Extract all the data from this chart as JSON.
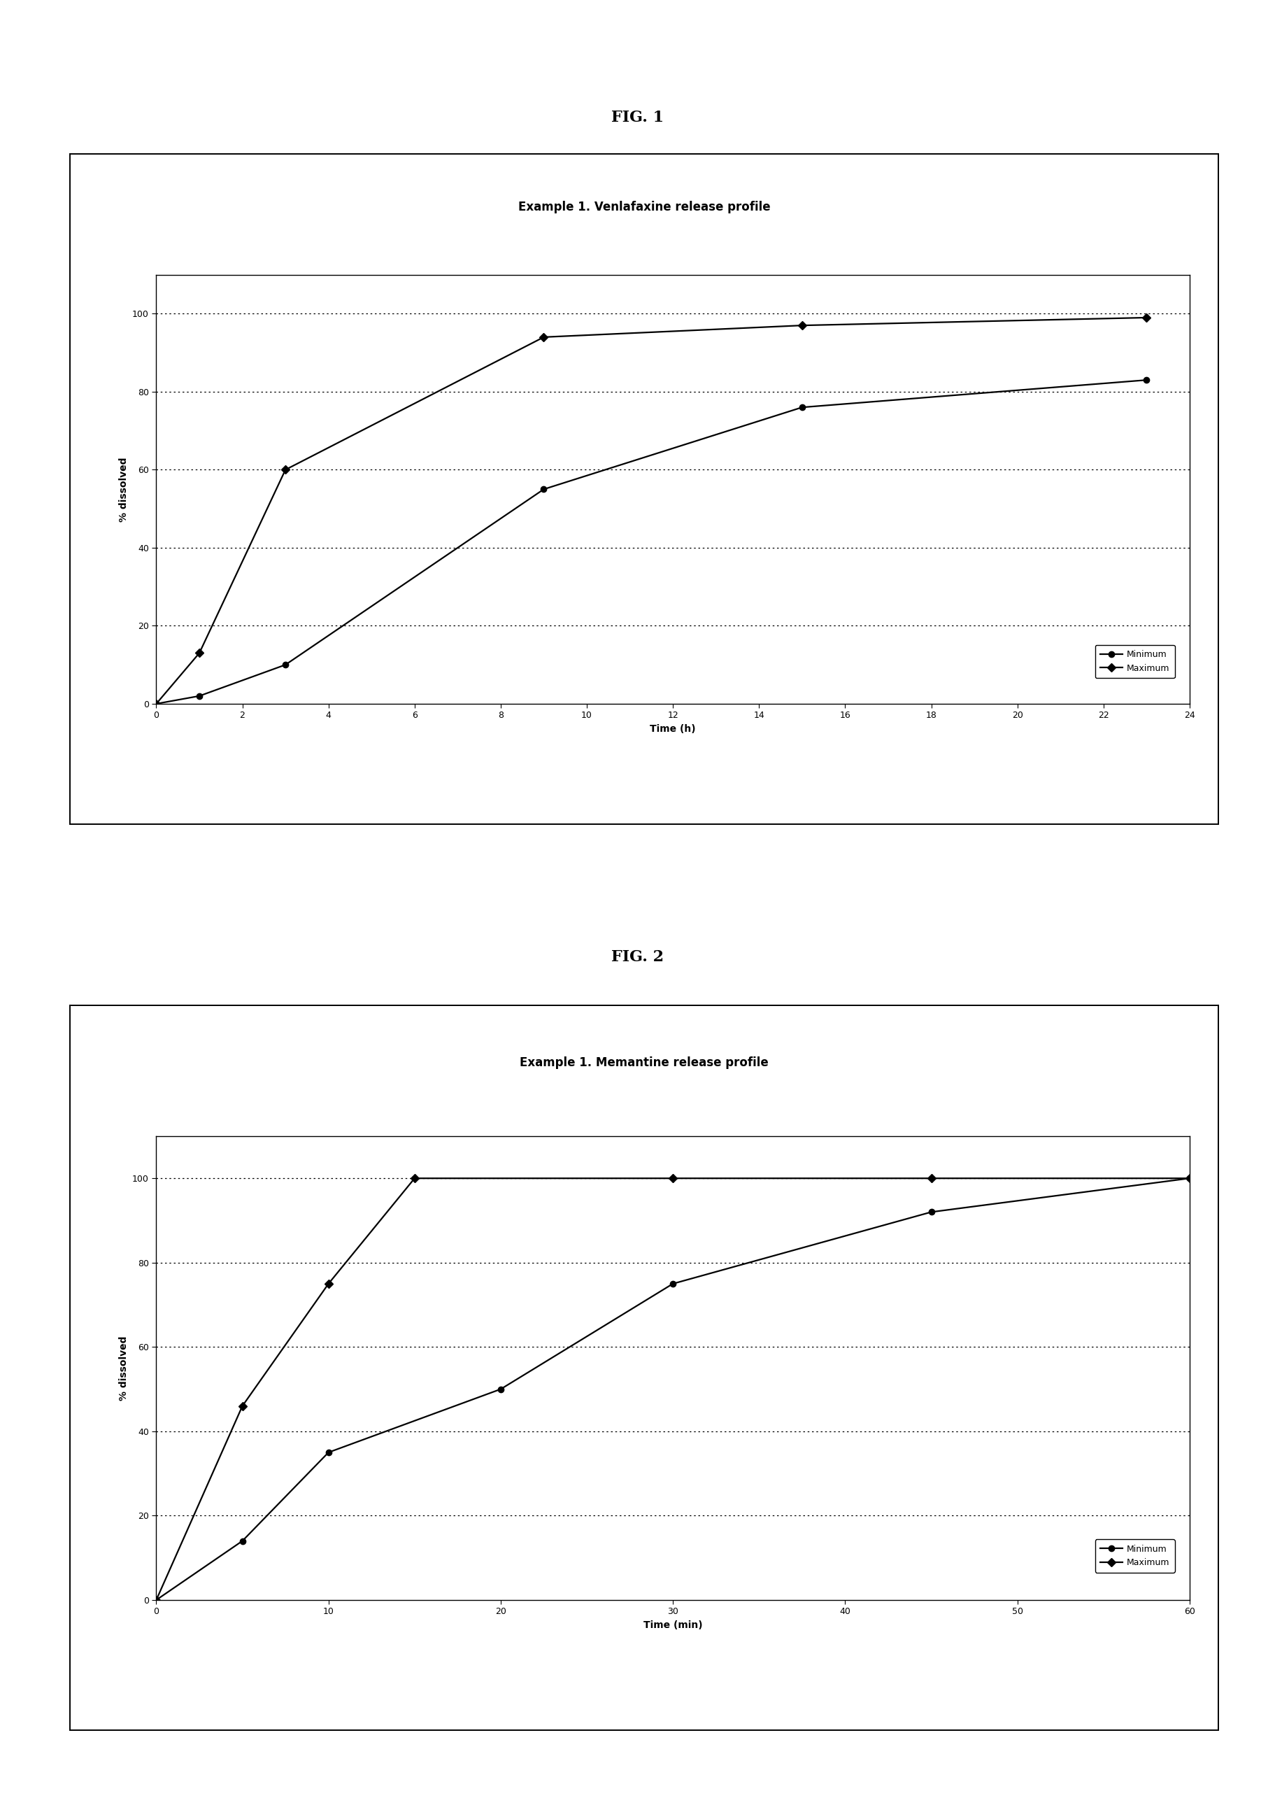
{
  "fig1": {
    "title": "Example 1. Venlafaxine release profile",
    "xlabel": "Time (h)",
    "ylabel": "% dissolved",
    "minimum_x": [
      0,
      1,
      3,
      9,
      15,
      23
    ],
    "minimum_y": [
      0,
      2,
      10,
      55,
      76,
      83
    ],
    "maximum_x": [
      0,
      1,
      3,
      9,
      15,
      23
    ],
    "maximum_y": [
      0,
      13,
      60,
      94,
      97,
      99
    ],
    "xlim": [
      0,
      24
    ],
    "ylim": [
      0,
      110
    ],
    "xticks": [
      0,
      2,
      4,
      6,
      8,
      10,
      12,
      14,
      16,
      18,
      20,
      22,
      24
    ],
    "yticks": [
      0,
      20,
      40,
      60,
      80,
      100
    ],
    "gridlines_y": [
      20,
      40,
      60,
      80,
      100
    ]
  },
  "fig2": {
    "title": "Example 1. Memantine release profile",
    "xlabel": "Time (min)",
    "ylabel": "% dissolved",
    "minimum_x": [
      0,
      5,
      10,
      20,
      30,
      45,
      60
    ],
    "minimum_y": [
      0,
      14,
      35,
      50,
      75,
      92,
      100
    ],
    "maximum_x": [
      0,
      5,
      10,
      15,
      30,
      45,
      60
    ],
    "maximum_y": [
      0,
      46,
      75,
      100,
      100,
      100,
      100
    ],
    "xlim": [
      0,
      60
    ],
    "ylim": [
      0,
      110
    ],
    "xticks": [
      0,
      10,
      20,
      30,
      40,
      50,
      60
    ],
    "yticks": [
      0,
      20,
      40,
      60,
      80,
      100
    ],
    "gridlines_y": [
      20,
      40,
      60,
      80,
      100
    ]
  },
  "fig1_label": "FIG. 1",
  "fig2_label": "FIG. 2",
  "line_color": "#000000",
  "marker_min": "o",
  "marker_max": "D",
  "marker_size": 6,
  "line_width": 1.6,
  "legend_minimum": "Minimum",
  "legend_maximum": "Maximum",
  "background_color": "#ffffff",
  "font_size_title": 12,
  "font_size_axis_label": 10,
  "font_size_tick": 9,
  "font_size_fig_label": 16,
  "font_size_legend": 9
}
